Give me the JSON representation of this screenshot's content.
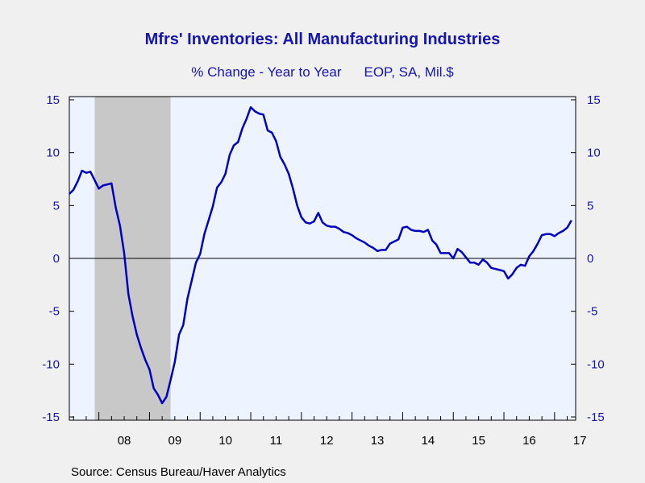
{
  "title": "Mfrs' Inventories: All Manufacturing Industries",
  "subtitle_left": "% Change - Year to Year",
  "subtitle_right": "EOP, SA, Mil.$",
  "source": "Source:  Census Bureau/Haver Analytics",
  "colors": {
    "line": "#0000c0",
    "text_blue": "#1515b0",
    "plot_bg": "#eef4ff",
    "recession": "#c8c8c8",
    "page_bg": "#f0f0f0"
  },
  "chart_data": {
    "type": "line",
    "title": "Mfrs' Inventories: All Manufacturing Industries",
    "xlabel": "",
    "ylabel": "",
    "ylim": [
      -15,
      15
    ],
    "yticks": [
      15,
      10,
      5,
      0,
      -5,
      -10,
      -15
    ],
    "xlim": [
      "2007-06",
      "2017-06"
    ],
    "year_labels": [
      "08",
      "09",
      "10",
      "11",
      "12",
      "13",
      "14",
      "15",
      "16",
      "17"
    ],
    "recession_shading": [
      "2007-12",
      "2009-06"
    ],
    "zero_line": true,
    "series": [
      {
        "x_start": "2007-06",
        "frequency": "monthly",
        "values": [
          6.1,
          6.5,
          7.3,
          8.3,
          8.1,
          8.2,
          7.4,
          6.6,
          6.9,
          7.0,
          7.1,
          4.8,
          3.1,
          0.5,
          -3.4,
          -5.5,
          -7.2,
          -8.5,
          -9.6,
          -10.5,
          -12.3,
          -12.9,
          -13.7,
          -13.1,
          -11.5,
          -9.8,
          -7.2,
          -6.3,
          -3.8,
          -2.1,
          -0.4,
          0.4,
          2.3,
          3.6,
          4.9,
          6.7,
          7.2,
          8.0,
          9.8,
          10.7,
          11.0,
          12.3,
          13.2,
          14.3,
          13.9,
          13.7,
          13.6,
          12.1,
          11.9,
          11.1,
          9.6,
          8.9,
          8.0,
          6.6,
          5.0,
          3.9,
          3.4,
          3.3,
          3.5,
          4.3,
          3.4,
          3.1,
          3.0,
          3.0,
          2.8,
          2.5,
          2.4,
          2.2,
          1.9,
          1.7,
          1.5,
          1.2,
          1.0,
          0.7,
          0.8,
          0.8,
          1.4,
          1.6,
          1.8,
          2.9,
          3.0,
          2.7,
          2.6,
          2.6,
          2.5,
          2.7,
          1.7,
          1.3,
          0.5,
          0.5,
          0.5,
          0.0,
          0.9,
          0.6,
          0.1,
          -0.4,
          -0.4,
          -0.6,
          -0.1,
          -0.4,
          -0.9,
          -1.0,
          -1.1,
          -1.2,
          -1.9,
          -1.5,
          -0.9,
          -0.6,
          -0.7,
          0.2,
          0.7,
          1.4,
          2.2,
          2.3,
          2.3,
          2.1,
          2.4,
          2.6,
          2.9,
          3.6
        ]
      }
    ]
  }
}
